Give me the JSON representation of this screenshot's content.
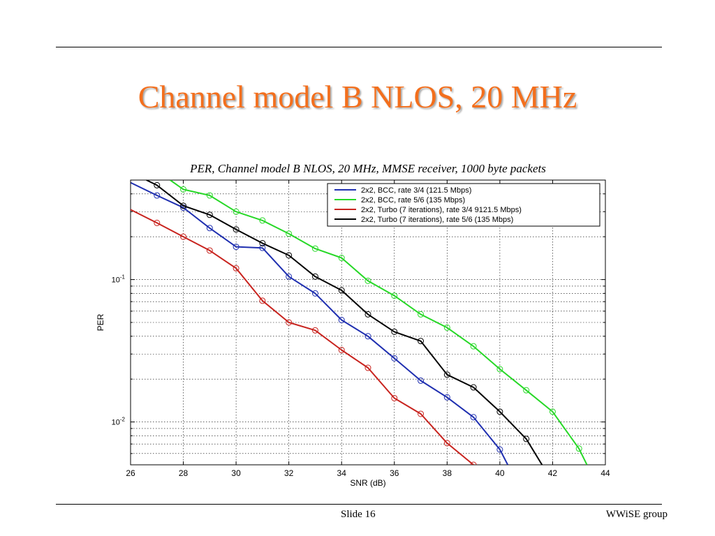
{
  "slide": {
    "title": "Channel model B NLOS, 20 MHz",
    "footer_left": "Slide 16",
    "footer_right": "WWiSE group"
  },
  "colors": {
    "title": "#f36f1d",
    "blue": "#1f2fb0",
    "green": "#27d827",
    "red": "#c8231e",
    "black": "#000000"
  },
  "chart_data": {
    "type": "line",
    "title": "PER, Channel model B NLOS, 20 MHz, MMSE receiver, 1000 byte packets",
    "xlabel": "SNR (dB)",
    "ylabel": "PER",
    "xlim": [
      26,
      44
    ],
    "ylim": [
      0.005,
      0.5
    ],
    "yscale": "log",
    "grid": true,
    "legend_position": "top-right",
    "xticks": [
      "26",
      "28",
      "30",
      "32",
      "34",
      "36",
      "38",
      "40",
      "42",
      "44"
    ],
    "yticks": [
      {
        "base": "10",
        "exp": "-1",
        "value": 0.1
      },
      {
        "base": "10",
        "exp": "-2",
        "value": 0.01
      }
    ],
    "series": [
      {
        "name": "2x2, BCC, rate 3/4 (121.5 Mbps)",
        "color": "#1f2fb0",
        "x": [
          26,
          27,
          28,
          29,
          30,
          31,
          32,
          33,
          34,
          35,
          36,
          37,
          38,
          39,
          40,
          40.3
        ],
        "y": [
          0.48,
          0.39,
          0.32,
          0.23,
          0.17,
          0.167,
          0.105,
          0.08,
          0.052,
          0.04,
          0.028,
          0.0195,
          0.0149,
          0.0108,
          0.0064,
          0.005
        ],
        "markers": [
          27,
          28,
          29,
          30,
          31,
          32,
          33,
          34,
          35,
          36,
          37,
          38,
          39,
          40
        ]
      },
      {
        "name": "2x2, BCC, rate 5/6 (135 Mbps)",
        "color": "#27d827",
        "x": [
          27.5,
          28,
          29,
          30,
          31,
          32,
          33,
          34,
          35,
          36,
          37,
          38,
          39,
          40,
          41,
          42,
          43,
          43.3
        ],
        "y": [
          0.5,
          0.43,
          0.39,
          0.3,
          0.26,
          0.21,
          0.165,
          0.142,
          0.098,
          0.077,
          0.057,
          0.046,
          0.034,
          0.0235,
          0.0167,
          0.0118,
          0.0065,
          0.005
        ],
        "markers": [
          28,
          29,
          30,
          31,
          32,
          33,
          34,
          35,
          36,
          37,
          38,
          39,
          40,
          41,
          42,
          43
        ]
      },
      {
        "name": "2x2, Turbo (7 iterations), rate 3/4 9121.5 Mbps)",
        "color": "#c8231e",
        "x": [
          26,
          27,
          28,
          29,
          30,
          31,
          32,
          33,
          34,
          35,
          36,
          37,
          38,
          39
        ],
        "y": [
          0.31,
          0.25,
          0.2,
          0.16,
          0.12,
          0.071,
          0.05,
          0.044,
          0.032,
          0.024,
          0.0147,
          0.0114,
          0.0071,
          0.005
        ],
        "markers": [
          27,
          28,
          29,
          30,
          31,
          32,
          33,
          34,
          35,
          36,
          37,
          38,
          39
        ]
      },
      {
        "name": "2x2, Turbo (7 iterations), rate 5/6 (135 Mbps)",
        "color": "#000000",
        "x": [
          26.6,
          27,
          28,
          29,
          30,
          31,
          32,
          33,
          34,
          35,
          36,
          37,
          38,
          39,
          40,
          41,
          41.6
        ],
        "y": [
          0.5,
          0.46,
          0.33,
          0.285,
          0.225,
          0.18,
          0.148,
          0.105,
          0.084,
          0.057,
          0.043,
          0.037,
          0.0215,
          0.0175,
          0.0118,
          0.0076,
          0.005
        ],
        "markers": [
          27,
          28,
          29,
          30,
          31,
          32,
          33,
          34,
          35,
          36,
          37,
          38,
          39,
          40,
          41
        ]
      }
    ]
  }
}
